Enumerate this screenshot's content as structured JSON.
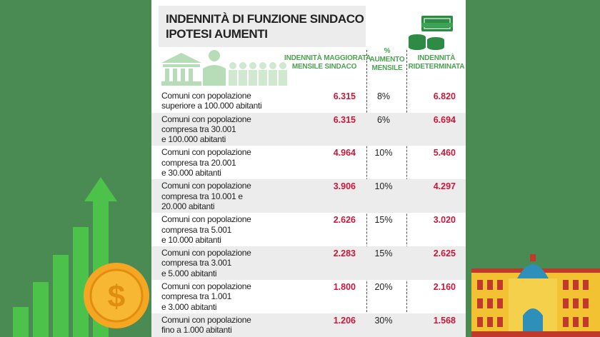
{
  "title_lines": [
    "INDENNITÀ DI FUNZIONE SINDACO",
    "IPOTESI AUMENTI"
  ],
  "table": {
    "headers": [
      [
        "INDENNITÀ MAGGIORATA",
        "MENSILE SINDACO"
      ],
      [
        "%",
        "AUMENTO",
        "MENSILE"
      ],
      [
        "INDENNITÀ",
        "RIDETERMINATA"
      ]
    ],
    "rows": [
      [
        [
          "Comuni con popolazione",
          "superiore a 100.000 abitanti"
        ],
        "6.315",
        "8%",
        "6.820"
      ],
      [
        [
          "Comuni con popolazione",
          "compresa tra 30.001",
          "e 100.000 abitanti"
        ],
        "6.315",
        "6%",
        "6.694"
      ],
      [
        [
          "Comuni con popolazione",
          "compresa tra 20.001",
          "e 30.000 abitanti"
        ],
        "4.964",
        "10%",
        "5.460"
      ],
      [
        [
          "Comuni con popolazione",
          "compresa tra 10.001 e",
          "20.000 abitanti"
        ],
        "3.906",
        "10%",
        "4.297"
      ],
      [
        [
          "Comuni con popolazione",
          "compresa tra 5.001",
          "e 10.000 abitanti"
        ],
        "2.626",
        "15%",
        "3.020"
      ],
      [
        [
          "Comuni con popolazione",
          "compresa tra 3.001",
          "e 5.000 abitanti"
        ],
        "2.283",
        "15%",
        "2.625"
      ],
      [
        [
          "Comuni con popolazione",
          "compresa tra 1.001",
          "e 3.000 abitanti"
        ],
        "1.800",
        "20%",
        "2.160"
      ],
      [
        [
          "Comuni con popolazione",
          "fino a 1.000 abitanti"
        ],
        "1.206",
        "30%",
        "1.568"
      ]
    ]
  }
}
